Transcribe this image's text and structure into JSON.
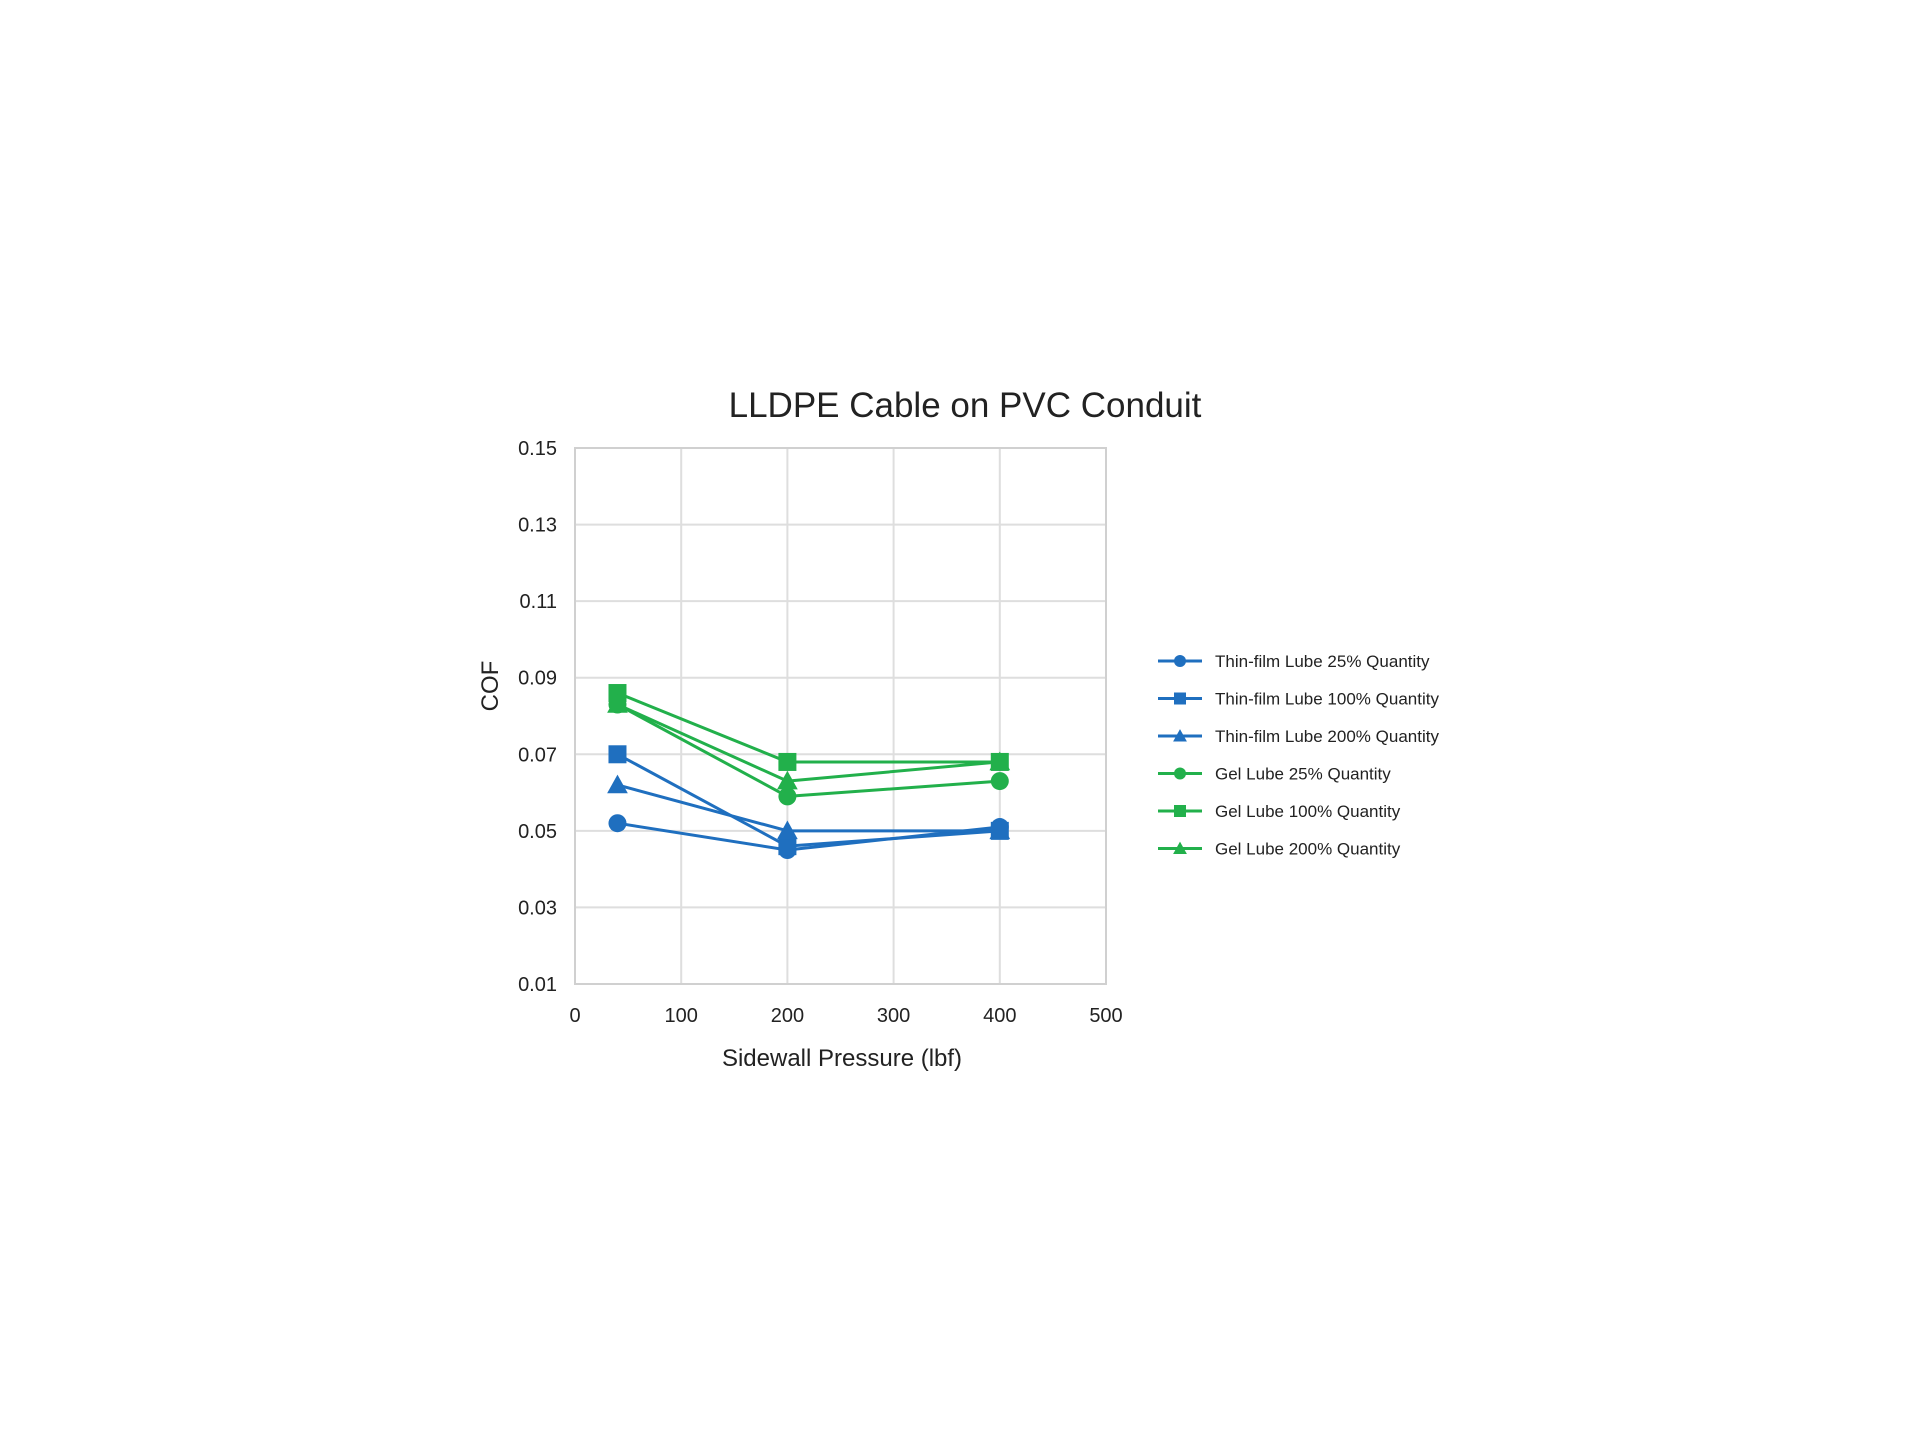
{
  "chart_data": {
    "type": "line",
    "title": "LLDPE Cable on PVC Conduit",
    "xlabel": "Sidewall Pressure (lbf)",
    "ylabel": "COF",
    "xlim": [
      0,
      500
    ],
    "ylim": [
      0.01,
      0.15
    ],
    "x_ticks": [
      "0",
      "100",
      "200",
      "300",
      "400",
      "500"
    ],
    "y_ticks": [
      "0.15",
      "0.13",
      "0.11",
      "0.09",
      "0.07",
      "0.05",
      "0.03",
      "0.01"
    ],
    "grid": true,
    "legend_position": "right",
    "x": [
      40,
      200,
      400
    ],
    "series": [
      {
        "name": "Thin-film Lube 25% Quantity",
        "color": "#1f6fbf",
        "marker": "circle",
        "values": [
          0.052,
          0.045,
          0.051
        ]
      },
      {
        "name": "Thin-film Lube 100% Quantity",
        "color": "#1f6fbf",
        "marker": "square",
        "values": [
          0.07,
          0.046,
          0.05
        ]
      },
      {
        "name": "Thin-film Lube 200% Quantity",
        "color": "#1f6fbf",
        "marker": "triangle",
        "values": [
          0.062,
          0.05,
          0.05
        ]
      },
      {
        "name": "Gel Lube 25% Quantity",
        "color": "#22b04b",
        "marker": "circle",
        "values": [
          0.083,
          0.059,
          0.063
        ]
      },
      {
        "name": "Gel Lube 100% Quantity",
        "color": "#22b04b",
        "marker": "square",
        "values": [
          0.086,
          0.068,
          0.068
        ]
      },
      {
        "name": "Gel Lube 200% Quantity",
        "color": "#22b04b",
        "marker": "triangle",
        "values": [
          0.083,
          0.063,
          0.068
        ]
      }
    ]
  }
}
